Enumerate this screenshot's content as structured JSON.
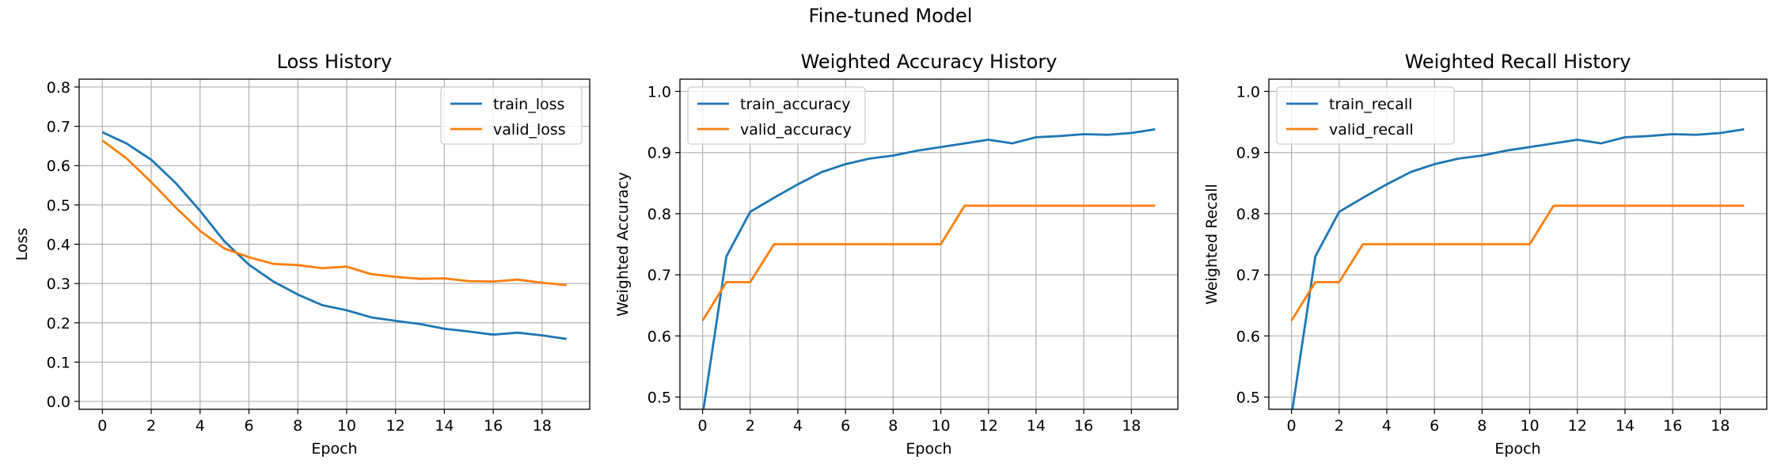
{
  "figure": {
    "suptitle": "Fine-tuned Model"
  },
  "colors": {
    "train": "#1f77b4",
    "valid": "#ff7f0e",
    "grid": "#b0b0b0"
  },
  "chart_data": [
    {
      "type": "line",
      "title": "Loss History",
      "xlabel": "Epoch",
      "ylabel": "Loss",
      "xlim": [
        -0.95,
        19.95
      ],
      "ylim": [
        -0.02,
        0.82
      ],
      "xticks": [
        0,
        2,
        4,
        6,
        8,
        10,
        12,
        14,
        16,
        18
      ],
      "yticks": [
        0.0,
        0.1,
        0.2,
        0.3,
        0.4,
        0.5,
        0.6,
        0.7,
        0.8
      ],
      "ytick_labels": [
        "0.0",
        "0.1",
        "0.2",
        "0.3",
        "0.4",
        "0.5",
        "0.6",
        "0.7",
        "0.8"
      ],
      "grid": true,
      "legend_loc": "upper right",
      "x": [
        0,
        1,
        2,
        3,
        4,
        5,
        6,
        7,
        8,
        9,
        10,
        11,
        12,
        13,
        14,
        15,
        16,
        17,
        18,
        19
      ],
      "series": [
        {
          "name": "train_loss",
          "color": "#1f77b4",
          "values": [
            0.685,
            0.656,
            0.615,
            0.556,
            0.485,
            0.407,
            0.348,
            0.305,
            0.272,
            0.245,
            0.232,
            0.214,
            0.205,
            0.197,
            0.185,
            0.178,
            0.17,
            0.175,
            0.168,
            0.159
          ]
        },
        {
          "name": "valid_loss",
          "color": "#ff7f0e",
          "values": [
            0.664,
            0.618,
            0.558,
            0.494,
            0.434,
            0.389,
            0.367,
            0.35,
            0.347,
            0.339,
            0.343,
            0.324,
            0.317,
            0.312,
            0.313,
            0.306,
            0.305,
            0.31,
            0.302,
            0.296
          ]
        }
      ]
    },
    {
      "type": "line",
      "title": "Weighted Accuracy History",
      "xlabel": "Epoch",
      "ylabel": "Weighted Accuracy",
      "xlim": [
        -0.95,
        19.95
      ],
      "ylim": [
        0.48,
        1.02
      ],
      "xticks": [
        0,
        2,
        4,
        6,
        8,
        10,
        12,
        14,
        16,
        18
      ],
      "yticks": [
        0.5,
        0.6,
        0.7,
        0.8,
        0.9,
        1.0
      ],
      "ytick_labels": [
        "0.5",
        "0.6",
        "0.7",
        "0.8",
        "0.9",
        "1.0"
      ],
      "grid": true,
      "legend_loc": "upper left",
      "x": [
        0,
        1,
        2,
        3,
        4,
        5,
        6,
        7,
        8,
        9,
        10,
        11,
        12,
        13,
        14,
        15,
        16,
        17,
        18,
        19
      ],
      "series": [
        {
          "name": "train_accuracy",
          "color": "#1f77b4",
          "values": [
            0.47,
            0.73,
            0.803,
            0.826,
            0.848,
            0.868,
            0.881,
            0.89,
            0.895,
            0.903,
            0.909,
            0.915,
            0.921,
            0.915,
            0.925,
            0.927,
            0.93,
            0.929,
            0.932,
            0.938
          ]
        },
        {
          "name": "valid_accuracy",
          "color": "#ff7f0e",
          "values": [
            0.625,
            0.688,
            0.688,
            0.75,
            0.75,
            0.75,
            0.75,
            0.75,
            0.75,
            0.75,
            0.75,
            0.813,
            0.813,
            0.813,
            0.813,
            0.813,
            0.813,
            0.813,
            0.813,
            0.813
          ]
        }
      ]
    },
    {
      "type": "line",
      "title": "Weighted Recall History",
      "xlabel": "Epoch",
      "ylabel": "Weighted Recall",
      "xlim": [
        -0.95,
        19.95
      ],
      "ylim": [
        0.48,
        1.02
      ],
      "xticks": [
        0,
        2,
        4,
        6,
        8,
        10,
        12,
        14,
        16,
        18
      ],
      "yticks": [
        0.5,
        0.6,
        0.7,
        0.8,
        0.9,
        1.0
      ],
      "ytick_labels": [
        "0.5",
        "0.6",
        "0.7",
        "0.8",
        "0.9",
        "1.0"
      ],
      "grid": true,
      "legend_loc": "upper left",
      "x": [
        0,
        1,
        2,
        3,
        4,
        5,
        6,
        7,
        8,
        9,
        10,
        11,
        12,
        13,
        14,
        15,
        16,
        17,
        18,
        19
      ],
      "series": [
        {
          "name": "train_recall",
          "color": "#1f77b4",
          "values": [
            0.47,
            0.73,
            0.803,
            0.826,
            0.848,
            0.868,
            0.881,
            0.89,
            0.895,
            0.903,
            0.909,
            0.915,
            0.921,
            0.915,
            0.925,
            0.927,
            0.93,
            0.929,
            0.932,
            0.938
          ]
        },
        {
          "name": "valid_recall",
          "color": "#ff7f0e",
          "values": [
            0.625,
            0.688,
            0.688,
            0.75,
            0.75,
            0.75,
            0.75,
            0.75,
            0.75,
            0.75,
            0.75,
            0.813,
            0.813,
            0.813,
            0.813,
            0.813,
            0.813,
            0.813,
            0.813,
            0.813
          ]
        }
      ]
    }
  ]
}
